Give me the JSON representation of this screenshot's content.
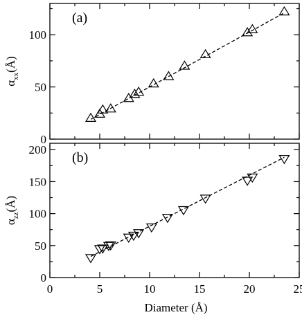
{
  "chart_data": [
    {
      "type": "scatter",
      "panel_label": "(a)",
      "ylabel_symbol": "α",
      "ylabel_sub": "xx",
      "ylabel_unit": "(Å)",
      "xlabel": "",
      "xlim": [
        0,
        25
      ],
      "ylim": [
        0,
        130
      ],
      "yticks": [
        0,
        50,
        100
      ],
      "xticks_labeled": false,
      "marker": "triangle-up",
      "fit_line": "dashed",
      "series": [
        {
          "x": [
            4.1,
            5.0,
            5.3,
            6.1,
            7.9,
            8.5,
            8.9,
            10.4,
            11.9,
            13.5,
            15.6,
            19.8,
            20.3,
            23.5
          ],
          "y": [
            20,
            24,
            28,
            29,
            39,
            43,
            45,
            53,
            60,
            70,
            81,
            102,
            105,
            122
          ]
        }
      ],
      "fit": {
        "x": [
          4.1,
          23.5
        ],
        "y": [
          19,
          121
        ]
      }
    },
    {
      "type": "scatter",
      "panel_label": "(b)",
      "ylabel_symbol": "α",
      "ylabel_sub": "zz",
      "ylabel_unit": "(Å)",
      "xlabel": "Diameter (Å)",
      "xlim": [
        0,
        25
      ],
      "ylim": [
        0,
        210
      ],
      "yticks": [
        0,
        50,
        100,
        150,
        200
      ],
      "xticks": [
        0,
        5,
        10,
        15,
        20,
        25
      ],
      "xticks_labeled": true,
      "marker": "triangle-down",
      "fit_line": "dashed",
      "series": [
        {
          "x": [
            4.1,
            5.0,
            5.3,
            5.9,
            6.1,
            7.9,
            8.4,
            8.9,
            10.2,
            11.8,
            13.4,
            15.6,
            19.8,
            20.3,
            23.5
          ],
          "y": [
            31,
            45,
            46,
            50,
            51,
            63,
            66,
            70,
            79,
            94,
            106,
            124,
            152,
            157,
            186
          ]
        }
      ],
      "fit": {
        "x": [
          4.1,
          23.5
        ],
        "y": [
          33,
          188
        ]
      }
    }
  ]
}
